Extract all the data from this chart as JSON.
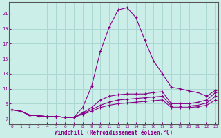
{
  "xlabel": "Windchill (Refroidissement éolien,°C)",
  "bg_color": "#cceee8",
  "grid_color": "#aad8d2",
  "line_color": "#880088",
  "x_ticks": [
    0,
    1,
    2,
    3,
    4,
    5,
    6,
    7,
    8,
    9,
    10,
    11,
    12,
    13,
    14,
    15,
    16,
    17,
    18,
    19,
    20,
    21,
    22,
    23
  ],
  "y_ticks": [
    7,
    9,
    11,
    13,
    15,
    17,
    19,
    21
  ],
  "xlim": [
    -0.3,
    23.3
  ],
  "ylim": [
    6.3,
    22.5
  ],
  "series": [
    [
      8.2,
      8.0,
      7.5,
      7.4,
      7.3,
      7.3,
      7.2,
      7.2,
      8.5,
      11.3,
      16.0,
      19.2,
      21.5,
      21.8,
      20.5,
      17.5,
      14.7,
      13.0,
      11.2,
      11.0,
      10.7,
      10.5,
      10.0,
      10.8
    ],
    [
      8.2,
      8.0,
      7.5,
      7.4,
      7.3,
      7.3,
      7.2,
      7.2,
      7.8,
      8.5,
      9.5,
      10.0,
      10.2,
      10.3,
      10.3,
      10.3,
      10.5,
      10.6,
      9.0,
      9.0,
      9.0,
      9.2,
      9.5,
      10.5
    ],
    [
      8.2,
      8.0,
      7.5,
      7.4,
      7.3,
      7.3,
      7.2,
      7.2,
      7.7,
      8.2,
      8.8,
      9.2,
      9.5,
      9.6,
      9.7,
      9.8,
      9.9,
      10.0,
      8.7,
      8.7,
      8.7,
      8.8,
      9.1,
      10.0
    ],
    [
      8.2,
      8.0,
      7.5,
      7.4,
      7.3,
      7.3,
      7.2,
      7.2,
      7.6,
      8.0,
      8.5,
      8.8,
      9.0,
      9.1,
      9.2,
      9.3,
      9.4,
      9.5,
      8.5,
      8.5,
      8.5,
      8.6,
      8.8,
      9.5
    ]
  ]
}
